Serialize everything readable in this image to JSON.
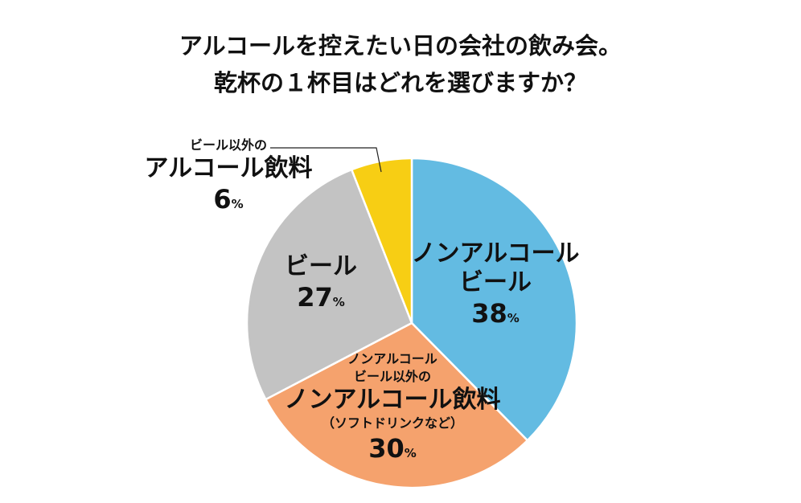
{
  "title": {
    "line1": "アルコールを控えたい日の会社の飲み会。",
    "line2": "乾杯の１杯目はどれを選びますか？"
  },
  "chart_data": {
    "type": "pie",
    "start_angle_deg": 0,
    "direction": "clockwise",
    "slices": [
      {
        "id": "nonalc-beer",
        "label_lines": [
          "ノンアルコール",
          "ビール"
        ],
        "value": 38,
        "color": "#63BBE2"
      },
      {
        "id": "nonalc-other",
        "label_top": [
          "ノンアルコール",
          "ビール以外の"
        ],
        "label_lines": [
          "ノンアルコール飲料"
        ],
        "label_sub": "（ソフトドリンクなど）",
        "value": 30,
        "color": "#F5A26D"
      },
      {
        "id": "beer",
        "label_lines": [
          "ビール"
        ],
        "value": 27,
        "color": "#C3C3C3"
      },
      {
        "id": "other-alc",
        "label_top": [
          "ビール以外の"
        ],
        "label_lines": [
          "アルコール飲料"
        ],
        "value": 6,
        "color": "#F7CE14"
      }
    ],
    "unit": "%"
  }
}
